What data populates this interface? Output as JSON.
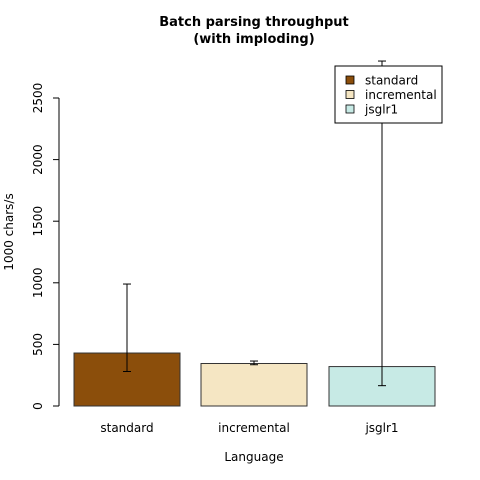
{
  "chart_data": {
    "type": "bar",
    "title_line1": "Batch parsing throughput",
    "title_line2": "(with imploding)",
    "xlabel": "Language",
    "ylabel": "1000 chars/s",
    "categories": [
      "standard",
      "incremental",
      "jsglr1"
    ],
    "values": [
      430,
      345,
      320
    ],
    "error_low": [
      280,
      335,
      165
    ],
    "error_high": [
      990,
      365,
      2800
    ],
    "colors": [
      "#8B4E0B",
      "#F5E6C3",
      "#C7EAE5"
    ],
    "ylim": [
      0,
      2500
    ],
    "yticks": [
      0,
      500,
      1000,
      1500,
      2000,
      2500
    ],
    "legend": {
      "placement": "top-right",
      "entries": [
        {
          "label": "standard",
          "color": "#8B4E0B"
        },
        {
          "label": "incremental",
          "color": "#F5E6C3"
        },
        {
          "label": "jsglr1",
          "color": "#C7EAE5"
        }
      ]
    },
    "grid": false
  }
}
